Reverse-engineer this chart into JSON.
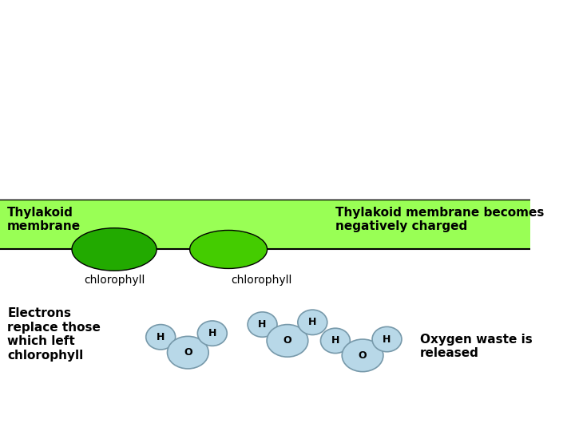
{
  "bg_color": "#ffffff",
  "membrane_color": "#99ff55",
  "membrane_label_left": "Thylakoid\nmembrane",
  "membrane_label_right": "Thylakoid membrane becomes\nnegatively charged",
  "chlorophyll1_color": "#22aa00",
  "chlorophyll2_color": "#44cc00",
  "chlorophyll_label": "chlorophyll",
  "water_color": "#b8d8e8",
  "water_edge_color": "#7799aa",
  "electrons_label": "Electrons\nreplace those\nwhich left\nchlorophyll",
  "oxygen_label": "Oxygen waste is\nreleased"
}
